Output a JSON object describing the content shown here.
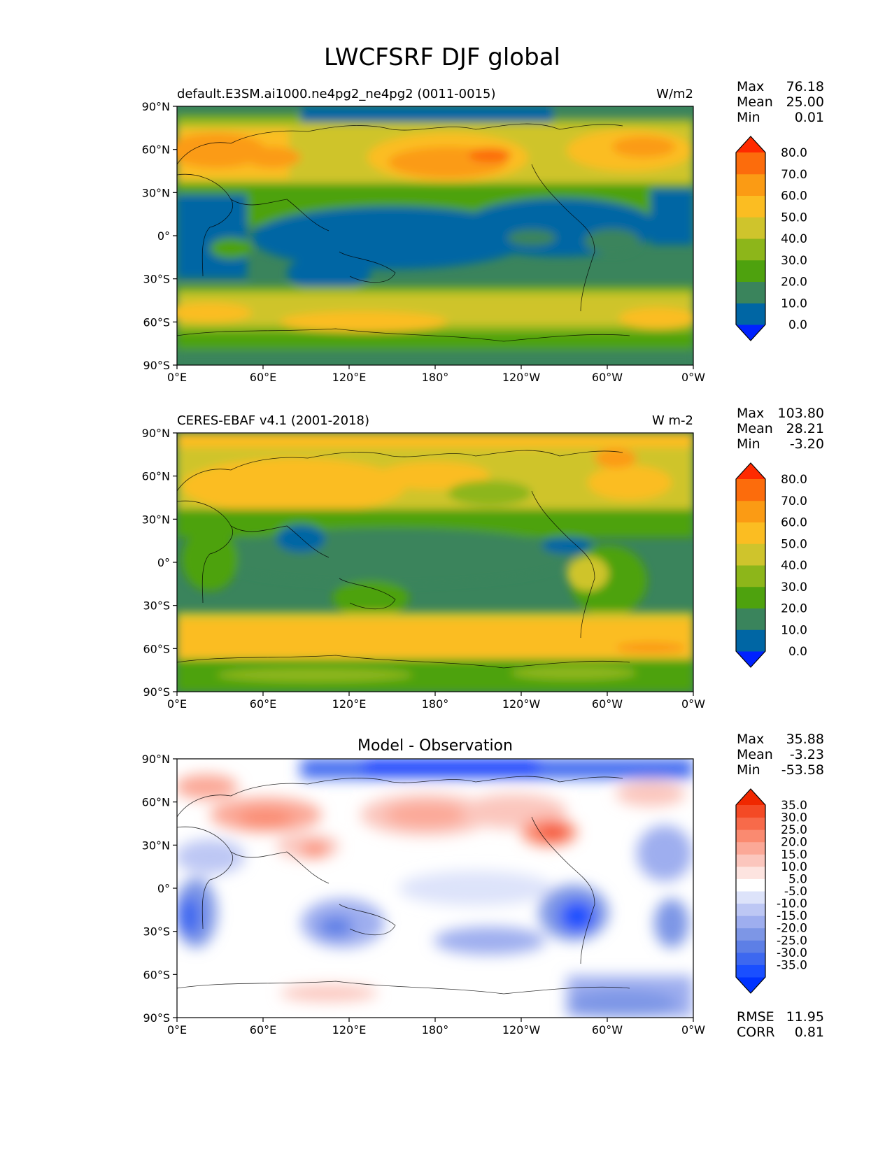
{
  "figure": {
    "title": "LWCFSRF DJF global"
  },
  "axes": {
    "lon_ticks": [
      "0°E",
      "60°E",
      "120°E",
      "180°",
      "120°W",
      "60°W",
      "0°W"
    ],
    "lat_ticks": [
      "90°N",
      "60°N",
      "30°N",
      "0°",
      "30°S",
      "60°S",
      "90°S"
    ]
  },
  "panels": [
    {
      "left_title": "default.E3SM.ai1000.ne4pg2_ne4pg2 (0011-0015)",
      "center_title": "",
      "units": "W/m2",
      "stats": [
        {
          "label": "Max",
          "value": "76.18"
        },
        {
          "label": "Mean",
          "value": "25.00"
        },
        {
          "label": "Min",
          "value": "0.01"
        }
      ],
      "colorbar": {
        "tick_labels": [
          "80.0",
          "70.0",
          "60.0",
          "50.0",
          "40.0",
          "30.0",
          "20.0",
          "10.0",
          "0.0"
        ],
        "colors": [
          "#0022ff",
          "#0066a4",
          "#3a845c",
          "#4ea20e",
          "#8db61a",
          "#cfc42c",
          "#fbbd22",
          "#fb9b14",
          "#fc6c0c",
          "#ff2a00"
        ]
      }
    },
    {
      "left_title": "CERES-EBAF v4.1 (2001-2018)",
      "center_title": "",
      "units": "W m-2",
      "stats": [
        {
          "label": "Max",
          "value": "103.80"
        },
        {
          "label": "Mean",
          "value": "28.21"
        },
        {
          "label": "Min",
          "value": "-3.20"
        }
      ],
      "colorbar": {
        "tick_labels": [
          "80.0",
          "70.0",
          "60.0",
          "50.0",
          "40.0",
          "30.0",
          "20.0",
          "10.0",
          "0.0"
        ],
        "colors": [
          "#0022ff",
          "#0066a4",
          "#3a845c",
          "#4ea20e",
          "#8db61a",
          "#cfc42c",
          "#fbbd22",
          "#fb9b14",
          "#fc6c0c",
          "#ff2a00"
        ]
      }
    },
    {
      "left_title": "",
      "center_title": "Model - Observation",
      "units": "",
      "stats": [
        {
          "label": "Max",
          "value": "35.88"
        },
        {
          "label": "Mean",
          "value": "-3.23"
        },
        {
          "label": "Min",
          "value": "-53.58"
        }
      ],
      "extra_stats": [
        {
          "label": "RMSE",
          "value": "11.95"
        },
        {
          "label": "CORR",
          "value": "0.81"
        }
      ],
      "colorbar": {
        "tick_labels": [
          "35.0",
          "30.0",
          "25.0",
          "20.0",
          "15.0",
          "10.0",
          "5.0",
          "-5.0",
          "-10.0",
          "-15.0",
          "-20.0",
          "-25.0",
          "-30.0",
          "-35.0"
        ],
        "colors": [
          "#0033ff",
          "#1a4fff",
          "#3d68f0",
          "#5d7fe6",
          "#7d96e6",
          "#9eaeef",
          "#bdc7f4",
          "#dde3fa",
          "#ffffff",
          "#fde4e0",
          "#fbc6bd",
          "#fba897",
          "#fa8a70",
          "#f76a4a",
          "#f44a25",
          "#f02800"
        ]
      }
    }
  ]
}
